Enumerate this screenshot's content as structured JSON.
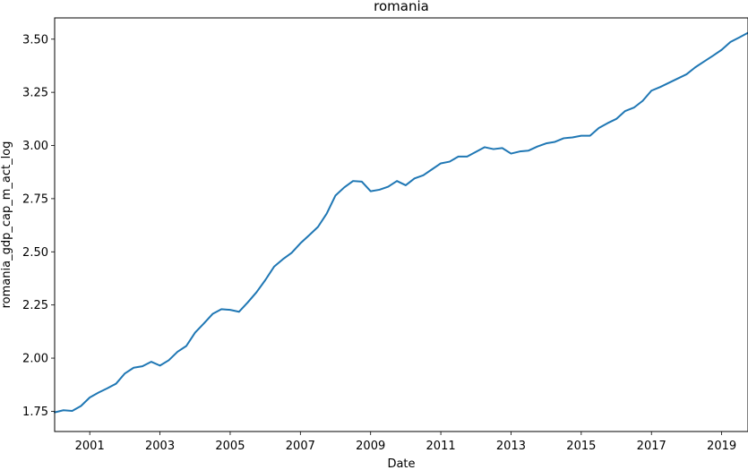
{
  "chart_data": {
    "type": "line",
    "title": "romania",
    "xlabel": "Date",
    "ylabel": "romania_gdp_cap_m_act_log",
    "x_range": [
      2000.0,
      2019.75
    ],
    "ylim": [
      1.655,
      3.6
    ],
    "x_ticks": [
      {
        "value": 2001,
        "label": "2001"
      },
      {
        "value": 2003,
        "label": "2003"
      },
      {
        "value": 2005,
        "label": "2005"
      },
      {
        "value": 2007,
        "label": "2007"
      },
      {
        "value": 2009,
        "label": "2009"
      },
      {
        "value": 2011,
        "label": "2011"
      },
      {
        "value": 2013,
        "label": "2013"
      },
      {
        "value": 2015,
        "label": "2015"
      },
      {
        "value": 2017,
        "label": "2017"
      },
      {
        "value": 2019,
        "label": "2019"
      }
    ],
    "y_ticks": [
      {
        "value": 1.75,
        "label": "1.75"
      },
      {
        "value": 2.0,
        "label": "2.00"
      },
      {
        "value": 2.25,
        "label": "2.25"
      },
      {
        "value": 2.5,
        "label": "2.50"
      },
      {
        "value": 2.75,
        "label": "2.75"
      },
      {
        "value": 3.0,
        "label": "3.00"
      },
      {
        "value": 3.25,
        "label": "3.25"
      },
      {
        "value": 3.5,
        "label": "3.50"
      }
    ],
    "grid": false,
    "color": "#1f77b4",
    "series": [
      {
        "x": [
          2000.0,
          2000.25,
          2000.5,
          2000.75,
          2001.0,
          2001.25,
          2001.5,
          2001.75,
          2002.0,
          2002.25,
          2002.5,
          2002.75,
          2003.0,
          2003.25,
          2003.5,
          2003.75,
          2004.0,
          2004.25,
          2004.5,
          2004.75,
          2005.0,
          2005.25,
          2005.5,
          2005.75,
          2006.0,
          2006.25,
          2006.5,
          2006.75,
          2007.0,
          2007.25,
          2007.5,
          2007.75,
          2008.0,
          2008.25,
          2008.5,
          2008.75,
          2009.0,
          2009.25,
          2009.5,
          2009.75,
          2010.0,
          2010.25,
          2010.5,
          2010.75,
          2011.0,
          2011.25,
          2011.5,
          2011.75,
          2012.0,
          2012.25,
          2012.5,
          2012.75,
          2013.0,
          2013.25,
          2013.5,
          2013.75,
          2014.0,
          2014.25,
          2014.5,
          2014.75,
          2015.0,
          2015.25,
          2015.5,
          2015.75,
          2016.0,
          2016.25,
          2016.5,
          2016.75,
          2017.0,
          2017.25,
          2017.5,
          2017.75,
          2018.0,
          2018.25,
          2018.5,
          2018.75,
          2019.0,
          2019.25,
          2019.5,
          2019.75
        ],
        "values": [
          1.745,
          1.755,
          1.752,
          1.775,
          1.815,
          1.838,
          1.858,
          1.88,
          1.928,
          1.955,
          1.962,
          1.983,
          1.965,
          1.99,
          2.03,
          2.057,
          2.12,
          2.163,
          2.208,
          2.23,
          2.227,
          2.218,
          2.262,
          2.31,
          2.367,
          2.43,
          2.465,
          2.495,
          2.54,
          2.578,
          2.617,
          2.68,
          2.765,
          2.803,
          2.833,
          2.83,
          2.785,
          2.792,
          2.806,
          2.833,
          2.813,
          2.845,
          2.86,
          2.888,
          2.916,
          2.924,
          2.948,
          2.948,
          2.97,
          2.992,
          2.983,
          2.988,
          2.962,
          2.972,
          2.976,
          2.995,
          3.01,
          3.017,
          3.034,
          3.038,
          3.046,
          3.046,
          3.082,
          3.105,
          3.125,
          3.162,
          3.178,
          3.21,
          3.258,
          3.275,
          3.295,
          3.315,
          3.335,
          3.368,
          3.395,
          3.422,
          3.45,
          3.487,
          3.508,
          3.53
        ]
      }
    ]
  }
}
